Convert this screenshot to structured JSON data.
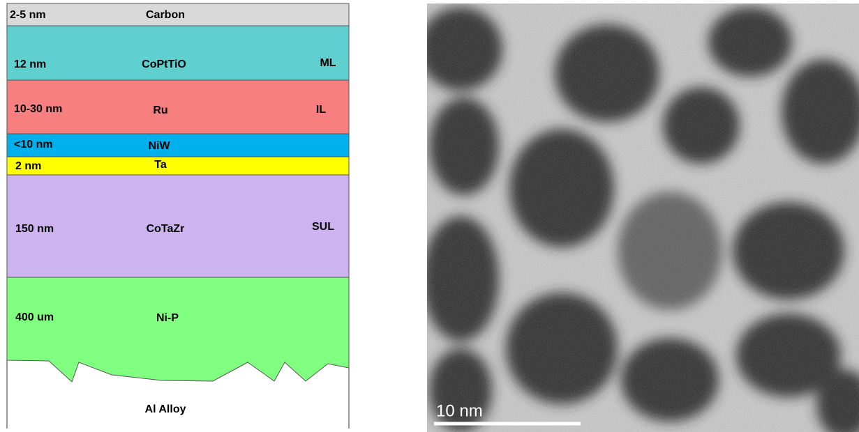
{
  "layers": [
    {
      "thickness": "2-5 nm",
      "material": "Carbon"
    },
    {
      "thickness": "12  nm",
      "material": "CoPtTiO",
      "role": "ML"
    },
    {
      "thickness": "10-30 nm",
      "material": "Ru",
      "role": "IL"
    },
    {
      "thickness": "<10 nm",
      "material": "NiW"
    },
    {
      "thickness": "2 nm",
      "material": "Ta"
    },
    {
      "thickness": "150 nm",
      "material": "CoTaZr",
      "role": "SUL"
    },
    {
      "thickness": "400 um",
      "material": "Ni-P"
    }
  ],
  "substrate": "Al Alloy",
  "micrograph": {
    "scale_bar": "10 nm"
  }
}
